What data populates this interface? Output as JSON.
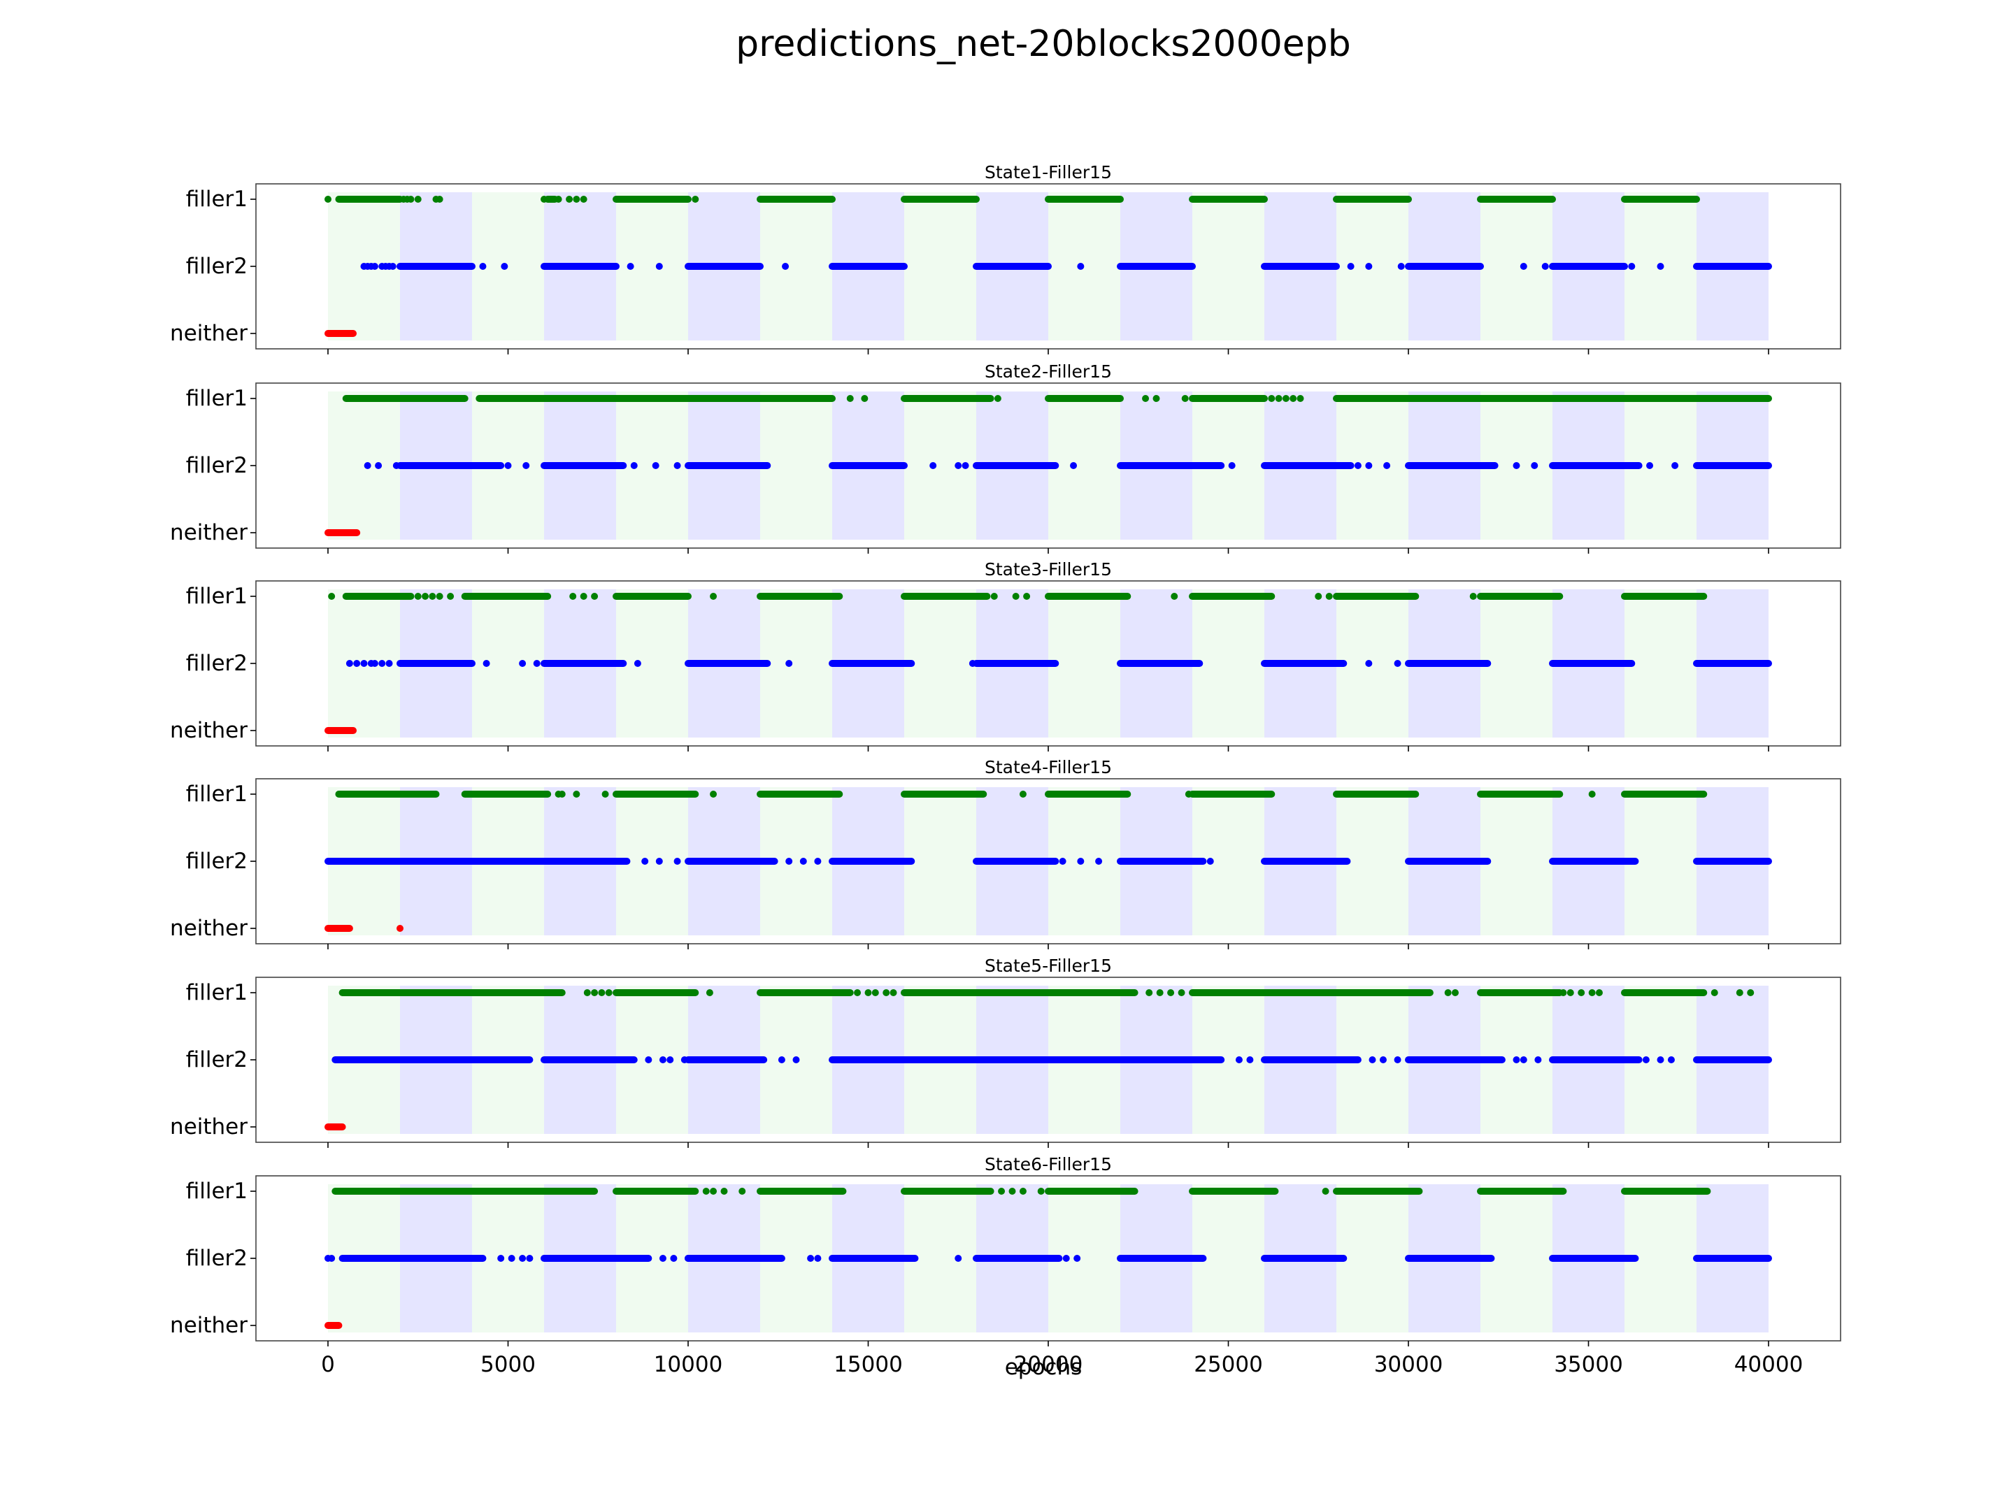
{
  "chart_data": {
    "type": "scatter",
    "title": "predictions_net-20blocks2000epb",
    "xlabel": "epochs",
    "xlim": [
      -2000,
      42000
    ],
    "x_ticks": [
      0,
      5000,
      10000,
      15000,
      20000,
      25000,
      30000,
      35000,
      40000
    ],
    "y_categories": [
      "filler1",
      "filler2",
      "neither"
    ],
    "series_colors": {
      "filler1": "#008000",
      "filler2": "#0000ff",
      "neither": "#ff0000"
    },
    "background_blocks": {
      "block_length": 2000,
      "range": [
        0,
        40000
      ],
      "alternating_colors": [
        "#f0fbf0",
        "#e5e5ff"
      ],
      "first_color_meaning": "filler1 block",
      "second_color_meaning": "filler2 block"
    },
    "subplots": [
      {
        "title": "State1-Filler15",
        "filler1": {
          "segments": [
            [
              300,
              2000
            ],
            [
              6100,
              6300
            ],
            [
              8000,
              10000
            ],
            [
              12000,
              14000
            ],
            [
              16000,
              18000
            ],
            [
              20000,
              22000
            ],
            [
              24000,
              26000
            ],
            [
              28000,
              30000
            ],
            [
              32000,
              34000
            ],
            [
              36000,
              38000
            ]
          ],
          "points": [
            0,
            2100,
            2200,
            2300,
            2500,
            3000,
            3100,
            6000,
            6400,
            6700,
            6900,
            7100,
            10200
          ]
        },
        "filler2": {
          "segments": [
            [
              2000,
              4000
            ],
            [
              6000,
              8000
            ],
            [
              10000,
              12000
            ],
            [
              14000,
              16000
            ],
            [
              18000,
              20000
            ],
            [
              22000,
              24000
            ],
            [
              26000,
              28000
            ],
            [
              30000,
              32000
            ],
            [
              34000,
              36000
            ],
            [
              38000,
              40000
            ]
          ],
          "points": [
            1000,
            1100,
            1200,
            1300,
            1500,
            1600,
            1700,
            1800,
            4300,
            4900,
            8400,
            9200,
            12700,
            20900,
            28400,
            28900,
            29800,
            33200,
            33800,
            36200,
            37000
          ]
        },
        "neither": {
          "segments": [
            [
              0,
              700
            ]
          ],
          "points": []
        }
      },
      {
        "title": "State2-Filler15",
        "filler1": {
          "segments": [
            [
              500,
              3800
            ],
            [
              4200,
              14000
            ],
            [
              16000,
              18400
            ],
            [
              20000,
              22000
            ],
            [
              24000,
              26000
            ],
            [
              28000,
              40000
            ]
          ],
          "points": [
            14500,
            14900,
            18600,
            22700,
            23000,
            23800,
            26200,
            26400,
            26600,
            26800,
            27000
          ]
        },
        "filler2": {
          "segments": [
            [
              2000,
              4800
            ],
            [
              6000,
              8200
            ],
            [
              10000,
              12200
            ],
            [
              14000,
              16000
            ],
            [
              18000,
              20200
            ],
            [
              22000,
              24800
            ],
            [
              26000,
              28400
            ],
            [
              30000,
              32400
            ],
            [
              34000,
              36400
            ],
            [
              38000,
              40000
            ]
          ],
          "points": [
            1100,
            1400,
            1900,
            5000,
            5500,
            8500,
            9100,
            9700,
            16800,
            17500,
            17700,
            20700,
            25100,
            28600,
            28900,
            29400,
            33000,
            33500,
            36700,
            37400
          ]
        },
        "neither": {
          "segments": [
            [
              0,
              800
            ]
          ],
          "points": []
        }
      },
      {
        "title": "State3-Filler15",
        "filler1": {
          "segments": [
            [
              500,
              2300
            ],
            [
              3800,
              6100
            ],
            [
              8000,
              10000
            ],
            [
              12000,
              14200
            ],
            [
              16000,
              18300
            ],
            [
              20000,
              22200
            ],
            [
              24000,
              26200
            ],
            [
              28000,
              30200
            ],
            [
              32000,
              34200
            ],
            [
              36000,
              38200
            ]
          ],
          "points": [
            100,
            2500,
            2700,
            2900,
            3100,
            3400,
            6800,
            7100,
            7400,
            10700,
            18500,
            19100,
            19400,
            23500,
            27500,
            27800,
            31800
          ]
        },
        "filler2": {
          "segments": [
            [
              2000,
              4000
            ],
            [
              6000,
              8200
            ],
            [
              10000,
              12200
            ],
            [
              14000,
              16200
            ],
            [
              18000,
              20200
            ],
            [
              22000,
              24200
            ],
            [
              26000,
              28200
            ],
            [
              30000,
              32200
            ],
            [
              34000,
              36200
            ],
            [
              38000,
              40000
            ]
          ],
          "points": [
            600,
            800,
            1000,
            1200,
            1300,
            1500,
            1700,
            4400,
            5400,
            5800,
            8600,
            12800,
            17900,
            28900,
            29700
          ]
        },
        "neither": {
          "segments": [
            [
              0,
              700
            ]
          ],
          "points": []
        }
      },
      {
        "title": "State4-Filler15",
        "filler1": {
          "segments": [
            [
              300,
              3000
            ],
            [
              3800,
              6100
            ],
            [
              8000,
              10200
            ],
            [
              12000,
              14200
            ],
            [
              16000,
              18200
            ],
            [
              20000,
              22200
            ],
            [
              24000,
              26200
            ],
            [
              28000,
              30200
            ],
            [
              32000,
              34200
            ],
            [
              36000,
              38200
            ]
          ],
          "points": [
            6400,
            6500,
            6900,
            7700,
            10700,
            19300,
            23900,
            35100
          ]
        },
        "filler2": {
          "segments": [
            [
              0,
              6000
            ],
            [
              6000,
              8300
            ],
            [
              10000,
              12400
            ],
            [
              14000,
              16200
            ],
            [
              18000,
              20200
            ],
            [
              22000,
              24300
            ],
            [
              26000,
              28300
            ],
            [
              30000,
              32200
            ],
            [
              34000,
              36300
            ],
            [
              38000,
              40000
            ]
          ],
          "points": [
            8800,
            9200,
            9700,
            12800,
            13200,
            13600,
            20400,
            20900,
            21400,
            24500
          ]
        },
        "neither": {
          "segments": [
            [
              0,
              600
            ]
          ],
          "points": [
            2000
          ]
        }
      },
      {
        "title": "State5-Filler15",
        "filler1": {
          "segments": [
            [
              400,
              6500
            ],
            [
              8000,
              10200
            ],
            [
              12000,
              14500
            ],
            [
              16000,
              20000
            ],
            [
              20000,
              22400
            ],
            [
              24000,
              30600
            ],
            [
              32000,
              34200
            ],
            [
              36000,
              38200
            ]
          ],
          "points": [
            7200,
            7400,
            7600,
            7800,
            10600,
            14700,
            15000,
            15200,
            15500,
            15700,
            18800,
            19100,
            19600,
            22800,
            23100,
            23400,
            23700,
            31100,
            31300,
            34300,
            34500,
            34800,
            35100,
            35300,
            38500,
            39200,
            39500
          ]
        },
        "filler2": {
          "segments": [
            [
              200,
              5600
            ],
            [
              6000,
              8500
            ],
            [
              10000,
              12100
            ],
            [
              14000,
              18000
            ],
            [
              18000,
              22000
            ],
            [
              22000,
              24800
            ],
            [
              26000,
              28600
            ],
            [
              30000,
              32600
            ],
            [
              34000,
              36400
            ],
            [
              38000,
              40000
            ]
          ],
          "points": [
            8900,
            9300,
            9500,
            9900,
            12600,
            13000,
            18300,
            20900,
            21300,
            25300,
            25600,
            29000,
            29300,
            29700,
            33000,
            33200,
            33600,
            36600,
            37000,
            37300
          ]
        },
        "neither": {
          "segments": [
            [
              0,
              400
            ]
          ],
          "points": []
        }
      },
      {
        "title": "State6-Filler15",
        "filler1": {
          "segments": [
            [
              200,
              4000
            ],
            [
              4000,
              7400
            ],
            [
              8000,
              10200
            ],
            [
              12000,
              14300
            ],
            [
              16000,
              18400
            ],
            [
              20000,
              22400
            ],
            [
              24000,
              26300
            ],
            [
              28000,
              30300
            ],
            [
              32000,
              34300
            ],
            [
              36000,
              38300
            ]
          ],
          "points": [
            10500,
            10700,
            11000,
            11500,
            18700,
            19000,
            19300,
            19800,
            27700
          ]
        },
        "filler2": {
          "segments": [
            [
              400,
              4300
            ],
            [
              6000,
              8900
            ],
            [
              10000,
              12600
            ],
            [
              14000,
              16300
            ],
            [
              18000,
              20300
            ],
            [
              22000,
              24300
            ],
            [
              26000,
              28200
            ],
            [
              30000,
              32300
            ],
            [
              34000,
              36300
            ],
            [
              38000,
              40000
            ]
          ],
          "points": [
            0,
            100,
            4800,
            5100,
            5400,
            5600,
            9300,
            9600,
            10000,
            13400,
            13600,
            17500,
            20500,
            20800
          ]
        },
        "neither": {
          "segments": [
            [
              0,
              300
            ]
          ],
          "points": []
        }
      }
    ]
  }
}
